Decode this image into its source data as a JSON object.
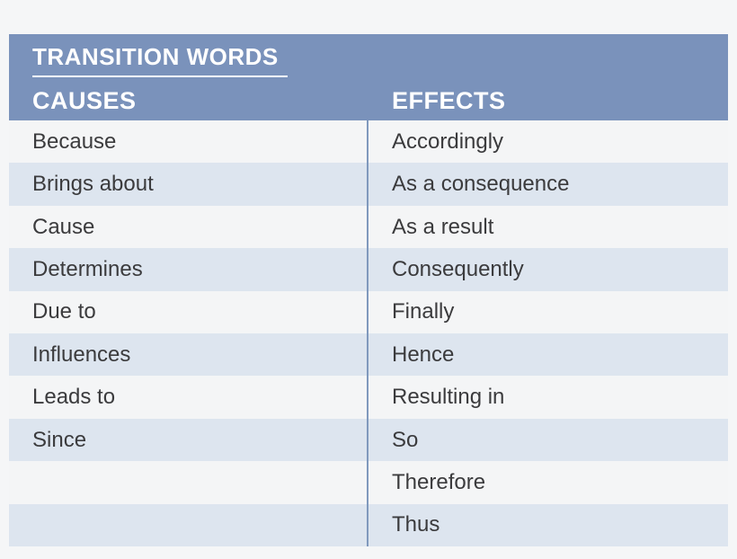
{
  "table": {
    "title": "TRANSITION WORDS",
    "column_headers": {
      "causes": "CAUSES",
      "effects": "EFFECTS"
    },
    "rows": [
      {
        "cause": "Because",
        "effect": "Accordingly"
      },
      {
        "cause": "Brings about",
        "effect": "As a consequence"
      },
      {
        "cause": "Cause",
        "effect": "As a result"
      },
      {
        "cause": "Determines",
        "effect": "Consequently"
      },
      {
        "cause": "Due to",
        "effect": "Finally"
      },
      {
        "cause": "Influences",
        "effect": "Hence"
      },
      {
        "cause": "Leads to",
        "effect": "Resulting in"
      },
      {
        "cause": "Since",
        "effect": "So"
      },
      {
        "cause": "",
        "effect": "Therefore"
      },
      {
        "cause": "",
        "effect": "Thus"
      }
    ]
  },
  "colors": {
    "page_background": "#f5f6f7",
    "header_background": "#7a92bb",
    "header_text": "#ffffff",
    "row_light": "#f4f5f6",
    "row_blue": "#dde5ef",
    "divider": "#8099bd",
    "body_text": "#3b3b3d"
  }
}
